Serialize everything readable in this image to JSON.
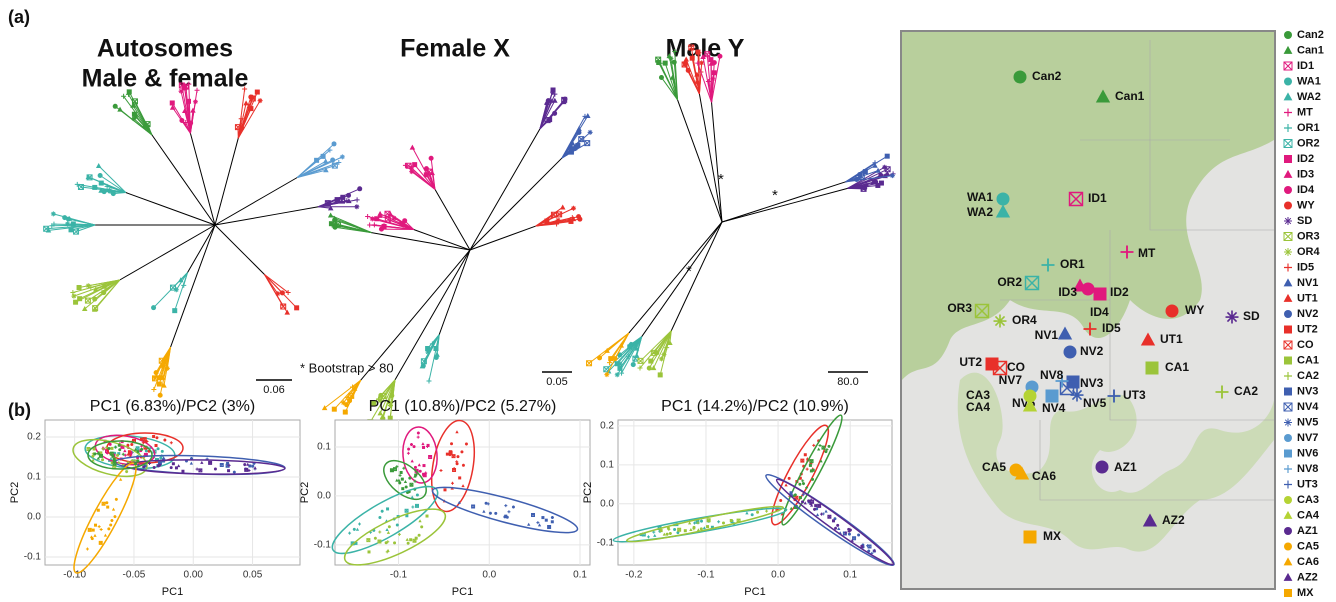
{
  "panel_a": "(a)",
  "panel_b": "(b)",
  "trees": {
    "autosomes_title": "Autosomes",
    "autosomes_subtitle": "Male & female",
    "female_title": "Female X",
    "male_title": "Male Y",
    "bootstrap_note": "* Bootstrap > 80",
    "scale_labels": [
      "0.06",
      "0.05",
      "80.0"
    ],
    "support_marks": [
      "*",
      "*",
      "*"
    ]
  },
  "pca": [
    {
      "title": "PC1 (6.83%)/PC2 (3%)",
      "xlabel": "PC1",
      "ylabel": "PC2",
      "xlim": [
        -0.125,
        0.09
      ],
      "ylim": [
        -0.12,
        0.2425
      ],
      "xticks": [
        {
          "value": -0.1,
          "label": "-0.10"
        },
        {
          "value": -0.05,
          "label": "-0.05"
        },
        {
          "value": 0,
          "label": "0.00"
        },
        0.05
      ],
      "yticks": [
        0.2,
        0.1,
        {
          "value": 0,
          "label": "0.0"
        },
        -0.1
      ]
    },
    {
      "title": "PC1 (10.8%)/PC2 (5.27%)",
      "xlabel": "PC1",
      "ylabel": "PC2",
      "xlim": [
        -0.17,
        0.111
      ],
      "ylim": [
        -0.141,
        0.155
      ],
      "xticks": [
        -0.1,
        {
          "value": 0,
          "label": "0.0"
        },
        0.1
      ],
      "yticks": [
        0.1,
        {
          "value": 0,
          "label": "0.0"
        },
        -0.1
      ]
    },
    {
      "title": "PC1 (14.2%)/PC2 (10.9%)",
      "xlabel": "PC1",
      "ylabel": "PC2",
      "xlim": [
        -0.222,
        0.158
      ],
      "ylim": [
        -0.157,
        0.215
      ],
      "xticks": [
        -0.2,
        -0.1,
        {
          "value": 0,
          "label": "0.0"
        },
        0.1
      ],
      "yticks": [
        0.2,
        0.1,
        {
          "value": 0,
          "label": "0.0"
        },
        -0.1
      ]
    }
  ],
  "legend": [
    {
      "label": "Can2",
      "color": "#3a9a3a",
      "shape": "circle"
    },
    {
      "label": "Can1",
      "color": "#3a9a3a",
      "shape": "triangle"
    },
    {
      "label": "ID1",
      "color": "#e0197d",
      "shape": "boxx"
    },
    {
      "label": "WA1",
      "color": "#3bb3a7",
      "shape": "circle"
    },
    {
      "label": "WA2",
      "color": "#3bb3a7",
      "shape": "triangle"
    },
    {
      "label": "MT",
      "color": "#e0197d",
      "shape": "plus"
    },
    {
      "label": "OR1",
      "color": "#3bb3a7",
      "shape": "plus"
    },
    {
      "label": "OR2",
      "color": "#3bb3a7",
      "shape": "boxx"
    },
    {
      "label": "ID2",
      "color": "#e0197d",
      "shape": "square"
    },
    {
      "label": "ID3",
      "color": "#e0197d",
      "shape": "triangle"
    },
    {
      "label": "ID4",
      "color": "#e0197d",
      "shape": "circle"
    },
    {
      "label": "WY",
      "color": "#e8302a",
      "shape": "circle"
    },
    {
      "label": "SD",
      "color": "#5a2a90",
      "shape": "asterisk"
    },
    {
      "label": "OR3",
      "color": "#9bc43a",
      "shape": "boxx"
    },
    {
      "label": "OR4",
      "color": "#9bc43a",
      "shape": "asterisk"
    },
    {
      "label": "ID5",
      "color": "#e8302a",
      "shape": "plus"
    },
    {
      "label": "NV1",
      "color": "#3f5fb0",
      "shape": "triangle"
    },
    {
      "label": "UT1",
      "color": "#e8302a",
      "shape": "triangle"
    },
    {
      "label": "NV2",
      "color": "#3f5fb0",
      "shape": "circle"
    },
    {
      "label": "UT2",
      "color": "#e8302a",
      "shape": "square"
    },
    {
      "label": "CO",
      "color": "#e8302a",
      "shape": "boxx"
    },
    {
      "label": "CA1",
      "color": "#9bc43a",
      "shape": "square"
    },
    {
      "label": "CA2",
      "color": "#9bc43a",
      "shape": "plus"
    },
    {
      "label": "NV3",
      "color": "#3f5fb0",
      "shape": "square"
    },
    {
      "label": "NV4",
      "color": "#3f5fb0",
      "shape": "boxx"
    },
    {
      "label": "NV5",
      "color": "#3f5fb0",
      "shape": "asterisk"
    },
    {
      "label": "NV7",
      "color": "#5a9bd0",
      "shape": "circle"
    },
    {
      "label": "NV6",
      "color": "#5a9bd0",
      "shape": "square"
    },
    {
      "label": "NV8",
      "color": "#5a9bd0",
      "shape": "plus"
    },
    {
      "label": "UT3",
      "color": "#3f5fb0",
      "shape": "plus"
    },
    {
      "label": "CA3",
      "color": "#b5d334",
      "shape": "circle"
    },
    {
      "label": "CA4",
      "color": "#b5d334",
      "shape": "triangle"
    },
    {
      "label": "AZ1",
      "color": "#5a2a90",
      "shape": "circle"
    },
    {
      "label": "CA5",
      "color": "#f5a800",
      "shape": "circle"
    },
    {
      "label": "CA6",
      "color": "#f5a800",
      "shape": "triangle"
    },
    {
      "label": "AZ2",
      "color": "#5a2a90",
      "shape": "triangle"
    },
    {
      "label": "MX",
      "color": "#f5a800",
      "shape": "square"
    }
  ]
}
